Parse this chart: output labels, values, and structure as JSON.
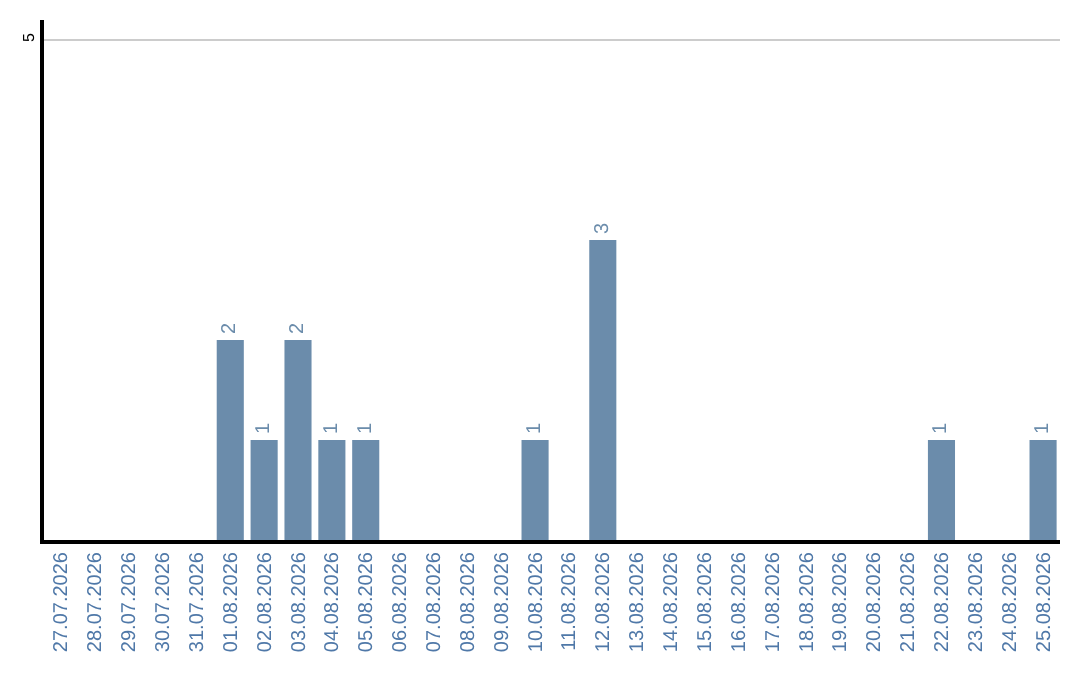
{
  "chart_data": {
    "type": "bar",
    "categories": [
      "27.07.2026",
      "28.07.2026",
      "29.07.2026",
      "30.07.2026",
      "31.07.2026",
      "01.08.2026",
      "02.08.2026",
      "03.08.2026",
      "04.08.2026",
      "05.08.2026",
      "06.08.2026",
      "07.08.2026",
      "08.08.2026",
      "09.08.2026",
      "10.08.2026",
      "11.08.2026",
      "12.08.2026",
      "13.08.2026",
      "14.08.2026",
      "15.08.2026",
      "16.08.2026",
      "17.08.2026",
      "18.08.2026",
      "19.08.2026",
      "20.08.2026",
      "21.08.2026",
      "22.08.2026",
      "23.08.2026",
      "24.08.2026",
      "25.08.2026"
    ],
    "values": [
      0,
      0,
      0,
      0,
      0,
      2,
      1,
      2,
      1,
      1,
      0,
      0,
      0,
      0,
      1,
      0,
      3,
      0,
      0,
      0,
      0,
      0,
      0,
      0,
      0,
      0,
      1,
      0,
      0,
      1
    ],
    "value_labels": [
      null,
      null,
      null,
      null,
      null,
      "2",
      "1",
      "2",
      "1",
      "1",
      null,
      null,
      null,
      null,
      "1",
      null,
      "3",
      null,
      null,
      null,
      null,
      null,
      null,
      null,
      null,
      null,
      "1",
      null,
      null,
      "1"
    ],
    "color": "#6b8cab",
    "ylim": [
      0,
      5.2
    ],
    "yticks": [
      5
    ],
    "grid": "y",
    "legend": false
  }
}
